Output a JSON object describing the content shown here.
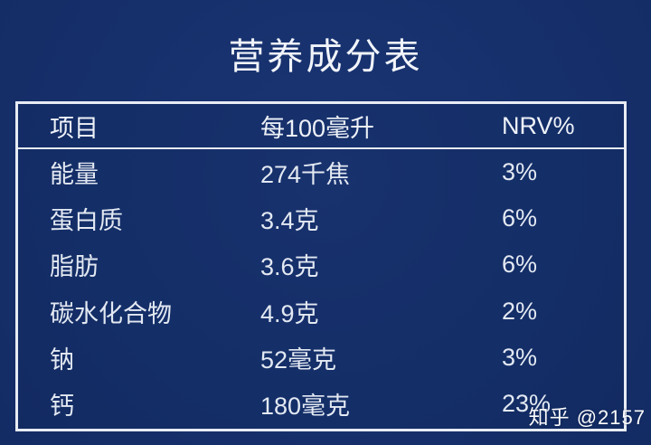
{
  "page": {
    "background_color": "#16306c",
    "border_color": "#e7ecf4",
    "text_color": "#e9eef6"
  },
  "title": "营养成分表",
  "table": {
    "headers": [
      "项目",
      "每100毫升",
      "NRV%"
    ],
    "rows": [
      {
        "item": "能量",
        "per100ml": "274千焦",
        "nrv": "3%"
      },
      {
        "item": "蛋白质",
        "per100ml": "3.4克",
        "nrv": "6%"
      },
      {
        "item": "脂肪",
        "per100ml": "3.6克",
        "nrv": "6%"
      },
      {
        "item": "碳水化合物",
        "per100ml": "4.9克",
        "nrv": "2%"
      },
      {
        "item": "钠",
        "per100ml": "52毫克",
        "nrv": "3%"
      },
      {
        "item": "钙",
        "per100ml": "180毫克",
        "nrv": "23%"
      }
    ]
  },
  "watermark": "知乎 @2157"
}
